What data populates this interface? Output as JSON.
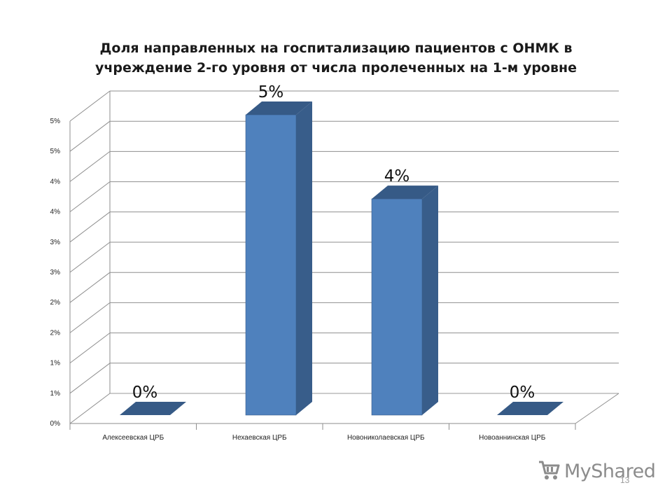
{
  "chart_data": {
    "type": "bar",
    "title_lines": [
      "Доля направленных на госпитализацию пациентов с ОНМК в",
      "учреждение 2-го уровня от числа пролеченных на 1-м уровне"
    ],
    "categories": [
      "Алексеевская ЦРБ",
      "Нехаевская ЦРБ",
      "Новониколаевская ЦРБ",
      "Новоаннинская ЦРБ"
    ],
    "values": [
      0,
      5,
      3.6,
      0
    ],
    "data_labels": [
      "0%",
      "5%",
      "4%",
      "0%"
    ],
    "y_tick_labels": [
      "0%",
      "1%",
      "1%",
      "2%",
      "2%",
      "3%",
      "3%",
      "4%",
      "4%",
      "5%",
      "5%"
    ],
    "ylim": [
      0,
      5.0
    ],
    "grid": true,
    "bar_color": "#4f81bd",
    "bar_side_color": "#385d8a",
    "bar_top_color": "#365a86"
  },
  "watermark": {
    "text": "MyShared",
    "icon": "shopping-cart-icon"
  },
  "slide_number": "13"
}
